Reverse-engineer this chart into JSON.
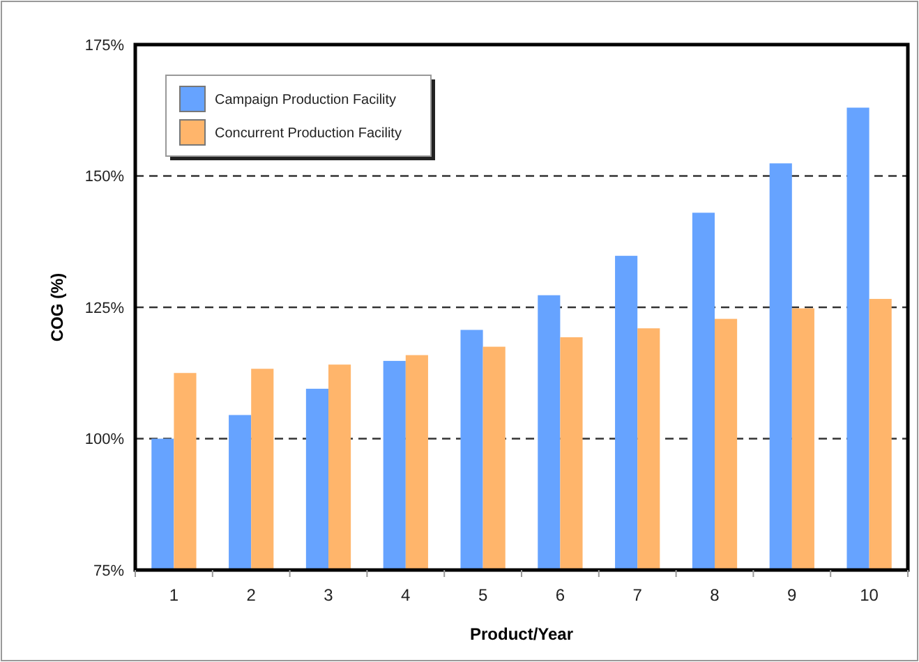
{
  "chart_data": {
    "type": "bar",
    "xlabel": "Product/Year",
    "ylabel": "COG (%)",
    "categories": [
      "1",
      "2",
      "3",
      "4",
      "5",
      "6",
      "7",
      "8",
      "9",
      "10"
    ],
    "series": [
      {
        "name": "Campaign Production Facility",
        "color": "#66a3ff",
        "values": [
          100,
          104.5,
          109.5,
          114.8,
          120.7,
          127.3,
          134.8,
          143,
          152.4,
          163
        ]
      },
      {
        "name": "Concurrent Production Facility",
        "color": "#ffb56b",
        "values": [
          112.5,
          113.3,
          114.1,
          115.9,
          117.5,
          119.3,
          121,
          122.8,
          124.8,
          126.6
        ]
      }
    ],
    "ylim": [
      75,
      175
    ],
    "yticks": [
      {
        "value": 75,
        "label": "75%"
      },
      {
        "value": 100,
        "label": "100%"
      },
      {
        "value": 125,
        "label": "125%"
      },
      {
        "value": 150,
        "label": "150%"
      },
      {
        "value": 175,
        "label": "175%"
      }
    ],
    "grid": "y",
    "legend": "top left"
  }
}
